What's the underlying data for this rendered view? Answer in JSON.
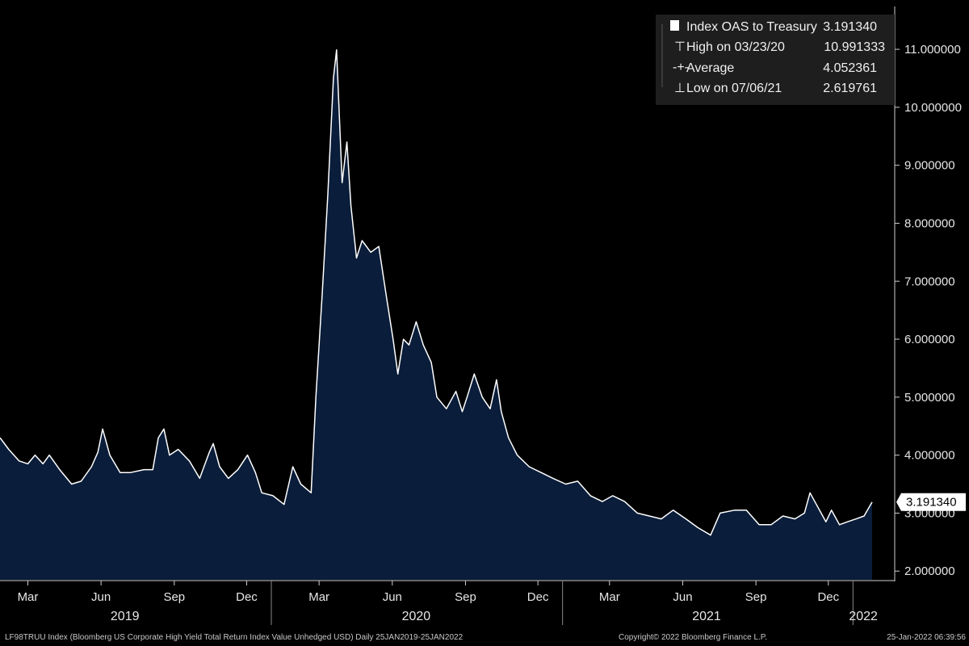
{
  "chart_data": {
    "type": "area",
    "ylim": [
      1.85,
      11.6
    ],
    "yticks": [
      2,
      3,
      4,
      5,
      6,
      7,
      8,
      9,
      10,
      11
    ],
    "ytick_labels": [
      "2.000000",
      "3.000000",
      "4.000000",
      "5.000000",
      "6.000000",
      "7.000000",
      "8.000000",
      "9.000000",
      "10.000000",
      "11.000000"
    ],
    "x_range": [
      "2019-01-25",
      "2022-01-25"
    ],
    "month_ticks": [
      {
        "date": "2019-03-01",
        "label": "Mar"
      },
      {
        "date": "2019-06-01",
        "label": "Jun"
      },
      {
        "date": "2019-09-01",
        "label": "Sep"
      },
      {
        "date": "2019-12-01",
        "label": "Dec"
      },
      {
        "date": "2020-03-01",
        "label": "Mar"
      },
      {
        "date": "2020-06-01",
        "label": "Jun"
      },
      {
        "date": "2020-09-01",
        "label": "Sep"
      },
      {
        "date": "2020-12-01",
        "label": "Dec"
      },
      {
        "date": "2021-03-01",
        "label": "Mar"
      },
      {
        "date": "2021-06-01",
        "label": "Jun"
      },
      {
        "date": "2021-09-01",
        "label": "Sep"
      },
      {
        "date": "2021-12-01",
        "label": "Dec"
      }
    ],
    "years": [
      {
        "label": "2019",
        "center": "2019-07-01"
      },
      {
        "label": "2020",
        "center": "2020-07-01"
      },
      {
        "label": "2021",
        "center": "2021-07-01"
      },
      {
        "label": "2022",
        "center": "2022-01-14"
      }
    ],
    "year_dividers": [
      "2020-01-01",
      "2021-01-01",
      "2022-01-01"
    ],
    "series": [
      {
        "name": "Index OAS to Treasury",
        "points": [
          [
            "2019-01-25",
            4.3
          ],
          [
            "2019-02-05",
            4.1
          ],
          [
            "2019-02-18",
            3.9
          ],
          [
            "2019-03-01",
            3.85
          ],
          [
            "2019-03-10",
            4.0
          ],
          [
            "2019-03-20",
            3.85
          ],
          [
            "2019-03-28",
            4.0
          ],
          [
            "2019-04-10",
            3.75
          ],
          [
            "2019-04-25",
            3.5
          ],
          [
            "2019-05-07",
            3.55
          ],
          [
            "2019-05-20",
            3.8
          ],
          [
            "2019-05-28",
            4.05
          ],
          [
            "2019-06-03",
            4.45
          ],
          [
            "2019-06-12",
            4.0
          ],
          [
            "2019-06-25",
            3.7
          ],
          [
            "2019-07-08",
            3.7
          ],
          [
            "2019-07-25",
            3.75
          ],
          [
            "2019-08-05",
            3.75
          ],
          [
            "2019-08-12",
            4.3
          ],
          [
            "2019-08-19",
            4.45
          ],
          [
            "2019-08-26",
            4.0
          ],
          [
            "2019-09-06",
            4.1
          ],
          [
            "2019-09-20",
            3.9
          ],
          [
            "2019-10-03",
            3.6
          ],
          [
            "2019-10-15",
            4.05
          ],
          [
            "2019-10-20",
            4.2
          ],
          [
            "2019-10-28",
            3.8
          ],
          [
            "2019-11-08",
            3.6
          ],
          [
            "2019-11-20",
            3.75
          ],
          [
            "2019-12-02",
            4.0
          ],
          [
            "2019-12-12",
            3.7
          ],
          [
            "2019-12-20",
            3.35
          ],
          [
            "2020-01-03",
            3.3
          ],
          [
            "2020-01-17",
            3.15
          ],
          [
            "2020-01-28",
            3.8
          ],
          [
            "2020-02-07",
            3.5
          ],
          [
            "2020-02-20",
            3.35
          ],
          [
            "2020-02-26",
            5.0
          ],
          [
            "2020-03-05",
            6.8
          ],
          [
            "2020-03-12",
            8.5
          ],
          [
            "2020-03-19",
            10.5
          ],
          [
            "2020-03-23",
            10.99
          ],
          [
            "2020-03-30",
            8.7
          ],
          [
            "2020-04-05",
            9.4
          ],
          [
            "2020-04-10",
            8.3
          ],
          [
            "2020-04-17",
            7.4
          ],
          [
            "2020-04-24",
            7.7
          ],
          [
            "2020-05-05",
            7.5
          ],
          [
            "2020-05-15",
            7.6
          ],
          [
            "2020-05-25",
            6.7
          ],
          [
            "2020-06-02",
            6.0
          ],
          [
            "2020-06-08",
            5.4
          ],
          [
            "2020-06-15",
            6.0
          ],
          [
            "2020-06-22",
            5.9
          ],
          [
            "2020-07-01",
            6.3
          ],
          [
            "2020-07-10",
            5.9
          ],
          [
            "2020-07-20",
            5.6
          ],
          [
            "2020-07-27",
            5.0
          ],
          [
            "2020-08-08",
            4.8
          ],
          [
            "2020-08-20",
            5.1
          ],
          [
            "2020-08-28",
            4.75
          ],
          [
            "2020-09-03",
            5.0
          ],
          [
            "2020-09-12",
            5.4
          ],
          [
            "2020-09-22",
            5.0
          ],
          [
            "2020-10-02",
            4.8
          ],
          [
            "2020-10-10",
            5.3
          ],
          [
            "2020-10-16",
            4.75
          ],
          [
            "2020-10-25",
            4.3
          ],
          [
            "2020-11-05",
            4.0
          ],
          [
            "2020-11-20",
            3.8
          ],
          [
            "2020-12-05",
            3.7
          ],
          [
            "2020-12-20",
            3.6
          ],
          [
            "2021-01-05",
            3.5
          ],
          [
            "2021-01-20",
            3.55
          ],
          [
            "2021-02-05",
            3.3
          ],
          [
            "2021-02-20",
            3.2
          ],
          [
            "2021-03-05",
            3.3
          ],
          [
            "2021-03-20",
            3.2
          ],
          [
            "2021-04-05",
            3.0
          ],
          [
            "2021-04-20",
            2.95
          ],
          [
            "2021-05-05",
            2.9
          ],
          [
            "2021-05-20",
            3.05
          ],
          [
            "2021-06-05",
            2.9
          ],
          [
            "2021-06-20",
            2.75
          ],
          [
            "2021-07-06",
            2.62
          ],
          [
            "2021-07-18",
            3.0
          ],
          [
            "2021-08-05",
            3.05
          ],
          [
            "2021-08-20",
            3.05
          ],
          [
            "2021-09-05",
            2.8
          ],
          [
            "2021-09-20",
            2.8
          ],
          [
            "2021-10-05",
            2.95
          ],
          [
            "2021-10-20",
            2.9
          ],
          [
            "2021-11-01",
            3.0
          ],
          [
            "2021-11-08",
            3.35
          ],
          [
            "2021-11-18",
            3.1
          ],
          [
            "2021-11-28",
            2.85
          ],
          [
            "2021-12-05",
            3.05
          ],
          [
            "2021-12-15",
            2.8
          ],
          [
            "2021-12-25",
            2.85
          ],
          [
            "2022-01-05",
            2.9
          ],
          [
            "2022-01-15",
            2.95
          ],
          [
            "2022-01-25",
            3.19134
          ]
        ]
      }
    ],
    "last_value_label": "3.191340",
    "legend_position": "top-right",
    "grid": false
  },
  "legend": {
    "rows": [
      {
        "label": "Index OAS to Treasury",
        "value": "3.191340"
      },
      {
        "label": "High on 03/23/20",
        "value": "10.991333"
      },
      {
        "label": "Average",
        "value": "4.052361"
      },
      {
        "label": "Low on 07/06/21",
        "value": "2.619761"
      }
    ]
  },
  "footer": {
    "left": "LF98TRUU Index (Bloomberg US Corporate High Yield Total Return Index Value Unhedged USD)  Daily 25JAN2019-25JAN2022",
    "center": "Copyright© 2022 Bloomberg Finance L.P.",
    "right": "25-Jan-2022 06:39:56"
  },
  "colors": {
    "background": "#000000",
    "area_fill": "#0a1d3a",
    "line": "#ffffff",
    "axis": "#cfcfcf",
    "legend_bg": "#1e1e1e",
    "last_label_bg": "#ffffff"
  }
}
